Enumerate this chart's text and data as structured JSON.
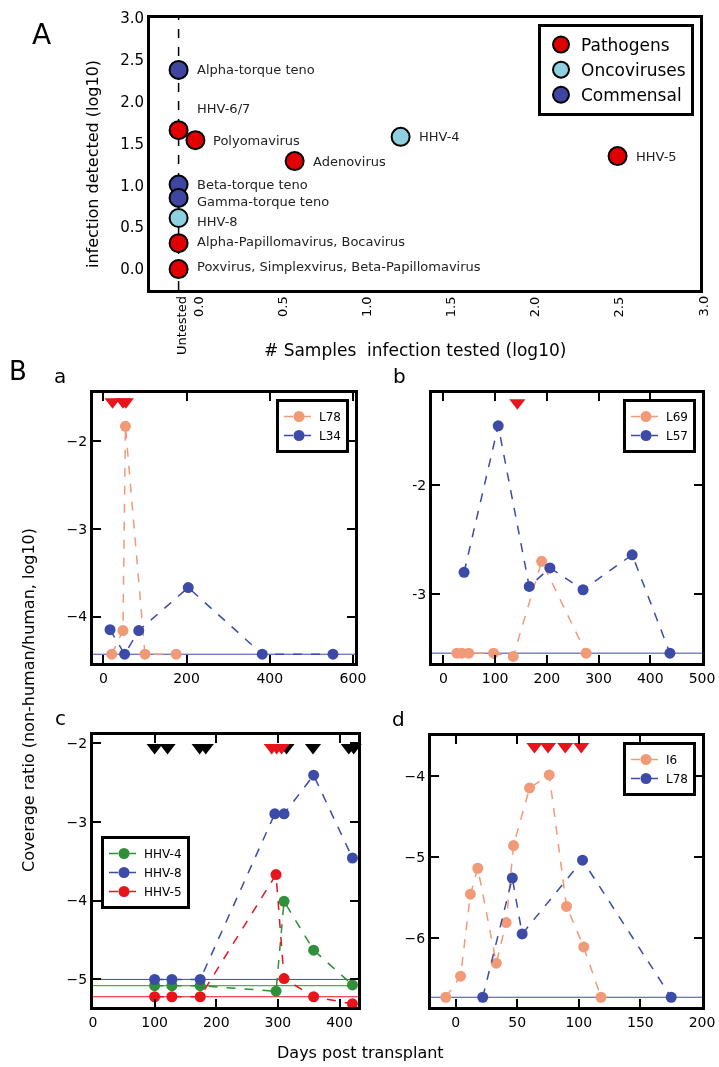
{
  "chart_data": [
    {
      "type": "scatter",
      "title": "A",
      "xlabel": "# Samples  infection tested (log10)",
      "ylabel": "infection detected (log10)",
      "xlim": [
        -0.27,
        3.0
      ],
      "ylim": [
        -0.25,
        3.0
      ],
      "xticks": [
        {
          "value": -0.1,
          "label": "Untested"
        },
        {
          "value": 0,
          "label": "0.0"
        },
        0.5,
        {
          "value": 1,
          "label": "1.0"
        },
        1.5,
        {
          "value": 2,
          "label": "2.0"
        },
        2.5,
        {
          "value": 3,
          "label": "3.0"
        }
      ],
      "yticks": [
        {
          "value": 0,
          "label": "0.0"
        },
        0.5,
        {
          "value": 1,
          "label": "1.0"
        },
        1.5,
        {
          "value": 2,
          "label": "2.0"
        },
        2.5,
        {
          "value": 3,
          "label": "3.0"
        }
      ],
      "legend": "top right",
      "marker": "circle",
      "ref_lines": [
        {
          "axis": "x",
          "value": -0.1,
          "color": "#000000",
          "line_style": "dashed"
        }
      ],
      "series": [
        {
          "name": "Pathogens",
          "color": "#e00000",
          "x": [
            -0.1,
            0.0,
            0.59,
            2.51,
            -0.1,
            -0.1
          ],
          "values": [
            1.66,
            1.54,
            1.29,
            1.35,
            0.31,
            0.0
          ]
        },
        {
          "name": "Oncoviruses",
          "color": "#8fd0e0",
          "x": [
            1.22,
            -0.1
          ],
          "values": [
            1.58,
            0.61
          ]
        },
        {
          "name": "Commensal",
          "color": "#3d46a0",
          "x": [
            -0.1,
            -0.1,
            -0.1
          ],
          "values": [
            2.38,
            1.01,
            0.85
          ]
        }
      ],
      "annotations": [
        {
          "text": "Alpha-torque teno",
          "x": -0.1,
          "y": 2.38
        },
        {
          "text": "HHV-6/7",
          "x": -0.1,
          "y": 1.66
        },
        {
          "text": "Polyomavirus",
          "x": 0.0,
          "y": 1.54
        },
        {
          "text": "HHV-4",
          "x": 1.22,
          "y": 1.58
        },
        {
          "text": "Adenovirus",
          "x": 0.59,
          "y": 1.29
        },
        {
          "text": "HHV-5",
          "x": 2.51,
          "y": 1.35
        },
        {
          "text": "Beta-torque teno",
          "x": -0.1,
          "y": 1.01
        },
        {
          "text": "Gamma-torque teno",
          "x": -0.1,
          "y": 0.81
        },
        {
          "text": "HHV-8",
          "x": -0.1,
          "y": 0.57
        },
        {
          "text": "Alpha-Papillomavirus, Bocavirus",
          "x": -0.1,
          "y": 0.33
        },
        {
          "text": "Poxvirus, Simplexvirus, Beta-Papillomavirus",
          "x": -0.1,
          "y": 0.03
        }
      ]
    },
    {
      "type": "line",
      "title": "a",
      "annotations": [
        "B"
      ],
      "xlim": [
        -25,
        605
      ],
      "ylim": [
        -4.53,
        -1.45
      ],
      "xticks": [
        0,
        200,
        400,
        600
      ],
      "yticks": [
        {
          "value": -2,
          "label": "−2"
        },
        {
          "value": -3,
          "label": "−3"
        },
        {
          "value": -4,
          "label": "−4"
        }
      ],
      "legend": "top right",
      "marker": "circle",
      "line_style": "dashed",
      "ref_lines": [
        {
          "axis": "y",
          "value": -4.43,
          "color": "#3c4aa8"
        }
      ],
      "series": [
        {
          "name": "L78",
          "color": "#f09a78",
          "x": [
            20,
            47,
            53,
            100,
            175
          ],
          "values": [
            -4.43,
            -4.16,
            -1.83,
            -4.43,
            -4.43
          ]
        },
        {
          "name": "L34",
          "color": "#3c4aa8",
          "x": [
            16,
            51,
            85,
            204,
            382,
            552
          ],
          "values": [
            -4.15,
            -4.43,
            -4.16,
            -3.67,
            -4.43,
            -4.43
          ]
        },
        {
          "type": "scatter",
          "marker": "triangle",
          "color": "#e8141c",
          "x": [
            22,
            47,
            54
          ],
          "values": [
            -1.55,
            -1.55,
            -1.55
          ]
        }
      ]
    },
    {
      "type": "line",
      "title": "b",
      "xlim": [
        -22,
        500
      ],
      "ylim": [
        -3.63,
        -1.16
      ],
      "xticks": [
        0,
        100,
        200,
        300,
        400,
        500
      ],
      "yticks": [
        -2,
        -3
      ],
      "legend": "top right",
      "marker": "circle",
      "line_style": "dashed",
      "ref_lines": [
        {
          "axis": "y",
          "value": -3.54,
          "color": "#3c4aa8"
        }
      ],
      "series": [
        {
          "name": "L69",
          "color": "#f09a78",
          "x": [
            26,
            36,
            49,
            97,
            135,
            190,
            276
          ],
          "values": [
            -3.54,
            -3.54,
            -3.54,
            -3.54,
            -3.57,
            -2.7,
            -3.54
          ]
        },
        {
          "name": "L57",
          "color": "#3c4aa8",
          "x": [
            40,
            106,
            166,
            206,
            270,
            365,
            438
          ],
          "values": [
            -2.8,
            -1.46,
            -2.93,
            -2.76,
            -2.96,
            -2.64,
            -3.54
          ]
        },
        {
          "type": "scatter",
          "marker": "triangle",
          "color": "#e8141c",
          "x": [
            143
          ],
          "values": [
            -1.25
          ]
        }
      ]
    },
    {
      "type": "line",
      "title": "c",
      "xlabel": "Days post transplant",
      "ylabel": "Coverage ratio (non-human/human, log10)",
      "xlim": [
        0,
        430
      ],
      "ylim": [
        -5.35,
        -1.9
      ],
      "xticks": [
        0,
        100,
        200,
        300,
        400
      ],
      "yticks": [
        {
          "value": -2,
          "label": "−2"
        },
        {
          "value": -3,
          "label": "−3"
        },
        {
          "value": -4,
          "label": "−4"
        },
        {
          "value": -5,
          "label": "−5"
        }
      ],
      "legend": "left",
      "marker": "circle",
      "line_style": "dashed",
      "ref_lines": [
        {
          "axis": "y",
          "value": -5.0,
          "color": "#3c4aa8"
        },
        {
          "axis": "y",
          "value": -5.08,
          "color": "#2f8f3a"
        },
        {
          "axis": "y",
          "value": -5.22,
          "color": "#e8141c"
        }
      ],
      "series": [
        {
          "name": "HHV-4",
          "color": "#2f8f3a",
          "x": [
            100,
            128,
            174,
            297,
            310,
            358,
            421
          ],
          "values": [
            -5.08,
            -5.08,
            -5.08,
            -5.15,
            -4.01,
            -4.63,
            -5.07
          ]
        },
        {
          "name": "HHV-8",
          "color": "#3c4aa8",
          "x": [
            100,
            128,
            174,
            295,
            310,
            358,
            421
          ],
          "values": [
            -5.0,
            -5.0,
            -5.0,
            -2.9,
            -2.9,
            -2.41,
            -3.46
          ]
        },
        {
          "name": "HHV-5",
          "color": "#e8141c",
          "x": [
            100,
            128,
            174,
            297,
            310,
            358,
            421
          ],
          "values": [
            -5.22,
            -5.22,
            -5.22,
            -3.67,
            -4.99,
            -5.22,
            -5.31
          ]
        },
        {
          "type": "scatter",
          "marker": "triangle",
          "color": "#000000",
          "x": [
            100,
            121,
            173,
            183,
            314,
            357,
            415,
            423
          ],
          "values": [
            -2.06,
            -2.06,
            -2.06,
            -2.06,
            -2.06,
            -2.06,
            -2.06,
            -2.06
          ]
        },
        {
          "type": "scatter",
          "marker": "triangle",
          "color": "#e8141c",
          "x": [
            290,
            298,
            306
          ],
          "values": [
            -2.06,
            -2.06,
            -2.06
          ]
        }
      ]
    },
    {
      "type": "line",
      "title": "d",
      "xlim": [
        -20,
        200
      ],
      "ylim": [
        -6.85,
        -3.51
      ],
      "xticks": [
        0,
        50,
        100,
        150,
        200
      ],
      "yticks": [
        {
          "value": -4,
          "label": "−4"
        },
        {
          "value": -5,
          "label": "−5"
        },
        {
          "value": -6,
          "label": "−6"
        }
      ],
      "legend": "top right",
      "marker": "circle",
      "line_style": "dashed",
      "ref_lines": [
        {
          "axis": "y",
          "value": -6.73,
          "color": "#3c4aa8"
        }
      ],
      "series": [
        {
          "name": "I6",
          "color": "#f09a78",
          "x": [
            -8,
            4,
            12,
            18,
            33,
            41,
            47,
            60,
            76,
            90,
            104,
            118
          ],
          "values": [
            -6.73,
            -6.47,
            -5.46,
            -5.14,
            -6.31,
            -5.81,
            -4.86,
            -4.15,
            -3.99,
            -5.61,
            -6.11,
            -6.73
          ]
        },
        {
          "name": "L78",
          "color": "#3c4aa8",
          "x": [
            22,
            46,
            54,
            103,
            175
          ],
          "values": [
            -6.73,
            -5.26,
            -5.95,
            -5.04,
            -6.73
          ]
        },
        {
          "type": "scatter",
          "marker": "triangle",
          "color": "#e8141c",
          "x": [
            64,
            75,
            89,
            102
          ],
          "values": [
            -3.64,
            -3.64,
            -3.64,
            -3.64
          ]
        }
      ]
    }
  ]
}
